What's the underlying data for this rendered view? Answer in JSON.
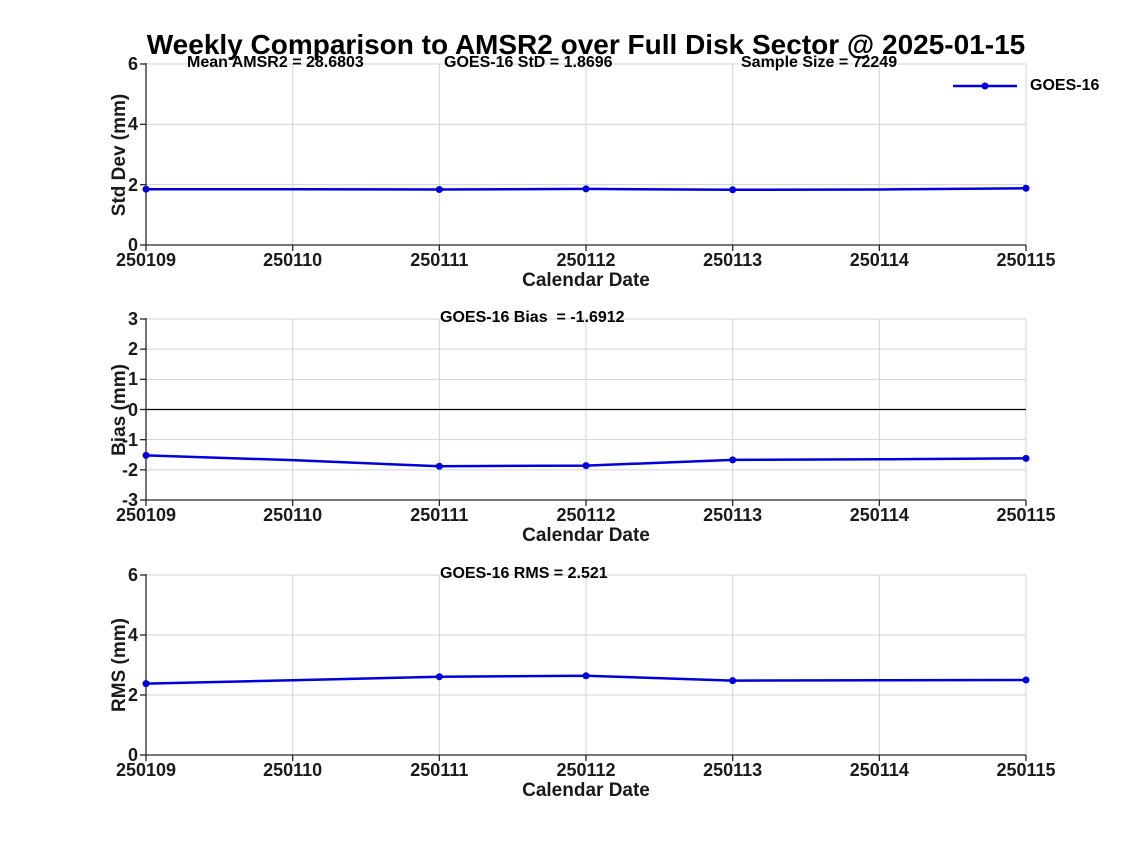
{
  "title": "Weekly Comparison to AMSR2 over Full Disk Sector @ 2025-01-15",
  "legend": {
    "label": "GOES-16"
  },
  "colors": {
    "line": "#0000dd",
    "grid": "#d3d3d3",
    "axis": "#262626",
    "zero_line": "#000000"
  },
  "chart_data": [
    {
      "type": "line",
      "annotations": [
        "Mean AMSR2 = 28.6803",
        "GOES-16 StD = 1.8696",
        "Sample Size = 72249"
      ],
      "xlabel": "Calendar Date",
      "ylabel": "Std Dev (mm)",
      "x": [
        250109,
        250110,
        250111,
        250112,
        250113,
        250114,
        250115
      ],
      "x_tick_labels": [
        "250109",
        "250110",
        "250111",
        "250112",
        "250113",
        "250114",
        "250115"
      ],
      "ylim": [
        0,
        6
      ],
      "yticks": [
        0,
        2,
        4,
        6
      ],
      "grid": true,
      "series": [
        {
          "name": "GOES-16",
          "values": [
            1.85,
            1.85,
            1.84,
            1.86,
            1.83,
            1.84,
            1.88
          ],
          "marker_indices": [
            0,
            2,
            3,
            4,
            6
          ]
        }
      ]
    },
    {
      "type": "line",
      "annotations": [
        "GOES-16 Bias  = -1.6912"
      ],
      "xlabel": "Calendar Date",
      "ylabel": "Bias (mm)",
      "x": [
        250109,
        250110,
        250111,
        250112,
        250113,
        250114,
        250115
      ],
      "x_tick_labels": [
        "250109",
        "250110",
        "250111",
        "250112",
        "250113",
        "250114",
        "250115"
      ],
      "ylim": [
        -3,
        3
      ],
      "yticks": [
        -3,
        -2,
        -1,
        0,
        1,
        2,
        3
      ],
      "zero_line": true,
      "grid": true,
      "series": [
        {
          "name": "GOES-16",
          "values": [
            -1.52,
            -1.68,
            -1.88,
            -1.86,
            -1.67,
            -1.65,
            -1.62
          ],
          "marker_indices": [
            0,
            2,
            3,
            4,
            6
          ]
        }
      ]
    },
    {
      "type": "line",
      "annotations": [
        "GOES-16 RMS = 2.521"
      ],
      "xlabel": "Calendar Date",
      "ylabel": "RMS (mm)",
      "x": [
        250109,
        250110,
        250111,
        250112,
        250113,
        250114,
        250115
      ],
      "x_tick_labels": [
        "250109",
        "250110",
        "250111",
        "250112",
        "250113",
        "250114",
        "250115"
      ],
      "ylim": [
        0,
        6
      ],
      "yticks": [
        0,
        2,
        4,
        6
      ],
      "grid": true,
      "series": [
        {
          "name": "GOES-16",
          "values": [
            2.38,
            2.49,
            2.61,
            2.64,
            2.48,
            2.49,
            2.5
          ],
          "marker_indices": [
            0,
            2,
            3,
            4,
            6
          ]
        }
      ]
    }
  ]
}
